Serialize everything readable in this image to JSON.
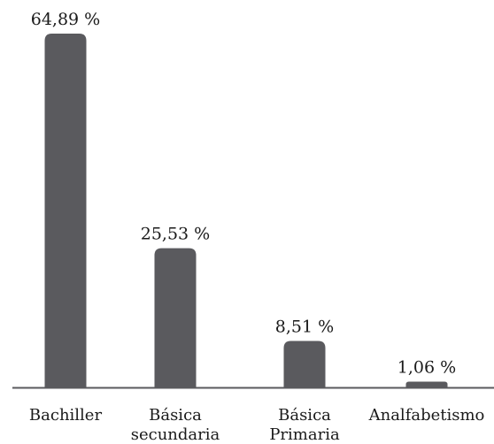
{
  "chart_data": {
    "type": "bar",
    "categories": [
      "Bachiller",
      "Básica secundaria",
      "Básica Primaria",
      "Analfabetismo"
    ],
    "category_lines": [
      [
        "Bachiller"
      ],
      [
        "Básica",
        "secundaria"
      ],
      [
        "Básica",
        "Primaria"
      ],
      [
        "Analfabetismo"
      ]
    ],
    "values": [
      64.89,
      25.53,
      8.51,
      1.06
    ],
    "value_labels": [
      "64,89 %",
      "25,53 %",
      "8,51 %",
      "1,06 %"
    ],
    "ylim": [
      0,
      64.89
    ],
    "bar_color": "#5a5a5e",
    "axis_color": "#5a5a5e",
    "grid": false,
    "title": "",
    "xlabel": "",
    "ylabel": ""
  }
}
